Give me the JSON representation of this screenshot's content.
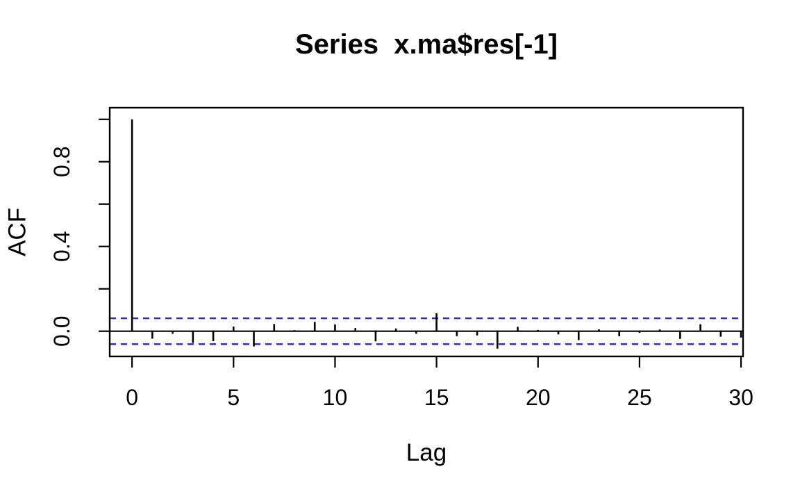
{
  "chart_data": {
    "type": "bar",
    "subtype": "acf-stick-plot",
    "title": "Series  x.ma$res[-1]",
    "xlabel": "Lag",
    "ylabel": "ACF",
    "x": [
      0,
      1,
      2,
      3,
      4,
      5,
      6,
      7,
      8,
      9,
      10,
      11,
      12,
      13,
      14,
      15,
      16,
      17,
      18,
      19,
      20,
      21,
      22,
      23,
      24,
      25,
      26,
      27,
      28,
      29,
      30
    ],
    "values": [
      1.0,
      -0.035,
      -0.012,
      -0.055,
      -0.047,
      0.022,
      -0.072,
      0.034,
      0.005,
      0.044,
      0.032,
      0.015,
      -0.048,
      0.013,
      -0.012,
      0.085,
      -0.023,
      -0.02,
      -0.082,
      0.021,
      0.006,
      -0.015,
      -0.042,
      0.009,
      -0.024,
      -0.008,
      0.008,
      -0.036,
      0.033,
      -0.026,
      -0.03
    ],
    "confidence_bounds": {
      "upper": 0.061,
      "lower": -0.061,
      "line_style": "dashed"
    },
    "xlim": [
      -1.1,
      30.1
    ],
    "ylim": [
      -0.119,
      1.055
    ],
    "grid": false,
    "legend": null,
    "x_ticks": [
      {
        "v": 0,
        "label": "0"
      },
      {
        "v": 5,
        "label": "5"
      },
      {
        "v": 10,
        "label": "10"
      },
      {
        "v": 15,
        "label": "15"
      },
      {
        "v": 20,
        "label": "20"
      },
      {
        "v": 25,
        "label": "25"
      },
      {
        "v": 30,
        "label": "30"
      }
    ],
    "y_ticks": [
      {
        "v": 0.0,
        "label": "0.0"
      },
      {
        "v": 0.2,
        "label": ""
      },
      {
        "v": 0.4,
        "label": "0.4"
      },
      {
        "v": 0.6,
        "label": ""
      },
      {
        "v": 0.8,
        "label": "0.8"
      },
      {
        "v": 1.0,
        "label": ""
      }
    ],
    "colors": {
      "series": "#000000",
      "confidence_line": "#2323d6",
      "axis": "#000000",
      "background": "#ffffff"
    }
  }
}
